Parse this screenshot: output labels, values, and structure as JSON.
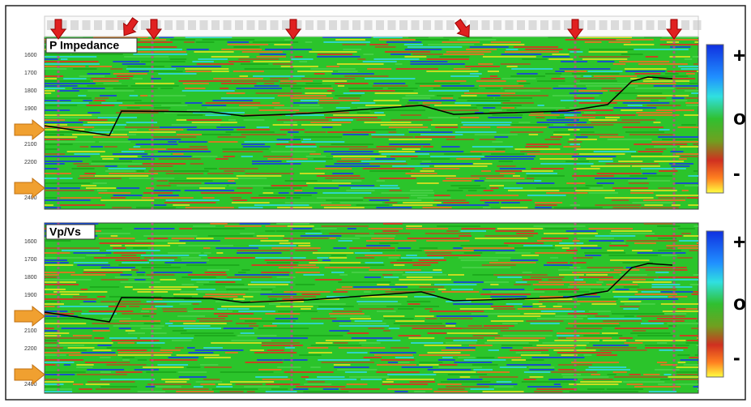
{
  "panels": [
    {
      "title": "P Impedance",
      "y_labels": [
        "1600",
        "1700",
        "1800",
        "1900",
        "2100",
        "2200",
        "2400"
      ]
    },
    {
      "title": "Vp/Vs",
      "y_labels": [
        "1600",
        "1700",
        "1800",
        "1900",
        "2100",
        "2200",
        "2400"
      ]
    }
  ],
  "colorbars": [
    {
      "labels": [
        "+",
        "o",
        "-"
      ]
    },
    {
      "labels": [
        "+",
        "o",
        "-"
      ]
    }
  ]
}
